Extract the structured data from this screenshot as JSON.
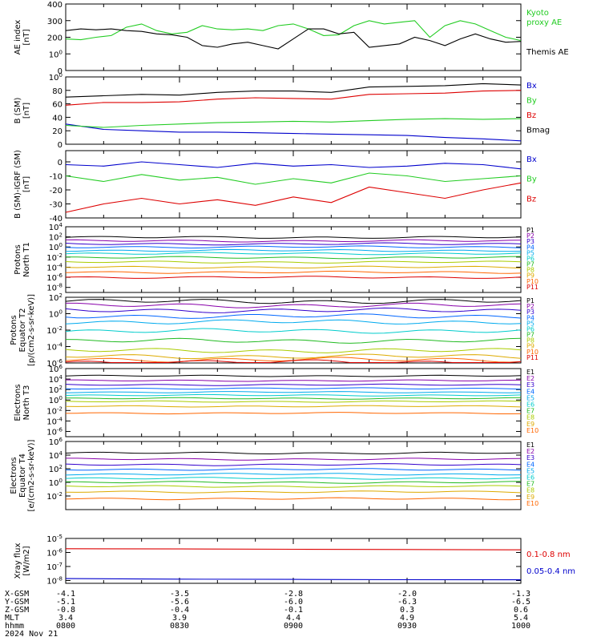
{
  "colors": {
    "black": "#000000",
    "red": "#dd0000",
    "green": "#22cc22",
    "blue": "#0000cc",
    "p1": "#000000",
    "p2": "#8800aa",
    "p3": "#3300cc",
    "p4": "#0066ff",
    "p5": "#00aaee",
    "p6": "#00cccc",
    "p7": "#22bb22",
    "p8": "#aacc00",
    "p9": "#ddaa00",
    "p10": "#ff6600",
    "p11": "#dd0000"
  },
  "footer": {
    "rows": [
      {
        "label": "X-GSM",
        "values": [
          "-4.1",
          "-3.5",
          "-2.8",
          "-2.0",
          "-1.3"
        ]
      },
      {
        "label": "Y-GSM",
        "values": [
          "-5.1",
          "-5.6",
          "-6.0",
          "-6.3",
          "-6.5"
        ]
      },
      {
        "label": "Z-GSM",
        "values": [
          "-0.8",
          "-0.4",
          "-0.1",
          "0.3",
          "0.6"
        ]
      },
      {
        "label": "MLT",
        "values": [
          "3.4",
          "3.9",
          "4.4",
          "4.9",
          "5.4"
        ]
      },
      {
        "label": "hhmm",
        "values": [
          "0800",
          "0830",
          "0900",
          "0930",
          "1000"
        ]
      }
    ],
    "date": "2024 Nov 21"
  },
  "chart_data": [
    {
      "type": "line",
      "ylabel": [
        "AE index",
        "[nT]"
      ],
      "ylim": [
        0,
        400
      ],
      "yticks": [
        0,
        100,
        200,
        300,
        400
      ],
      "yticklabels": [
        "0",
        "100",
        "200",
        "300",
        "400"
      ],
      "x_range": [
        "0800",
        "1000"
      ],
      "series": [
        {
          "name": "Kyoto proxy AE",
          "color": "#22cc22",
          "x": [
            0,
            4,
            8,
            12,
            16,
            20,
            24,
            28,
            32,
            36,
            40,
            44,
            48,
            52,
            56,
            60,
            64,
            68,
            72,
            76,
            80,
            84,
            88,
            92,
            96,
            100,
            104,
            108,
            112,
            116,
            120
          ],
          "y": [
            190,
            185,
            200,
            210,
            260,
            280,
            240,
            220,
            230,
            270,
            250,
            245,
            250,
            240,
            270,
            280,
            250,
            210,
            215,
            270,
            300,
            280,
            290,
            300,
            200,
            270,
            300,
            280,
            240,
            200,
            180
          ]
        },
        {
          "name": "Themis AE",
          "color": "#000000",
          "x": [
            0,
            4,
            8,
            12,
            16,
            20,
            24,
            28,
            32,
            36,
            40,
            44,
            48,
            52,
            56,
            60,
            64,
            68,
            72,
            76,
            80,
            84,
            88,
            92,
            96,
            100,
            104,
            108,
            112,
            116,
            120
          ],
          "y": [
            240,
            250,
            245,
            250,
            240,
            235,
            220,
            215,
            200,
            150,
            140,
            160,
            170,
            150,
            130,
            190,
            250,
            250,
            220,
            230,
            140,
            150,
            160,
            200,
            180,
            150,
            190,
            220,
            190,
            170,
            175
          ]
        }
      ]
    },
    {
      "type": "line",
      "ylabel": [
        "B (SM)",
        "[nT]"
      ],
      "ylim": [
        0,
        100
      ],
      "yticks": [
        0,
        20,
        40,
        60,
        80,
        100
      ],
      "yticklabels": [
        "0",
        "20",
        "40",
        "60",
        "80",
        "100"
      ],
      "series": [
        {
          "name": "Bx",
          "color": "#0000cc",
          "x": [
            0,
            10,
            20,
            30,
            40,
            50,
            60,
            70,
            80,
            90,
            100,
            110,
            120
          ],
          "y": [
            30,
            22,
            20,
            18,
            18,
            17,
            16,
            15,
            14,
            13,
            10,
            8,
            5
          ]
        },
        {
          "name": "By",
          "color": "#22cc22",
          "x": [
            0,
            10,
            20,
            30,
            40,
            50,
            60,
            70,
            80,
            90,
            100,
            110,
            120
          ],
          "y": [
            28,
            25,
            28,
            30,
            32,
            33,
            34,
            33,
            35,
            37,
            38,
            37,
            38
          ]
        },
        {
          "name": "Bz",
          "color": "#dd0000",
          "x": [
            0,
            10,
            20,
            30,
            40,
            50,
            60,
            70,
            80,
            90,
            100,
            110,
            120
          ],
          "y": [
            58,
            62,
            62,
            63,
            67,
            69,
            68,
            67,
            74,
            75,
            76,
            79,
            80
          ]
        },
        {
          "name": "Bmag",
          "color": "#000000",
          "x": [
            0,
            10,
            20,
            30,
            40,
            50,
            60,
            70,
            80,
            90,
            100,
            110,
            120
          ],
          "y": [
            70,
            72,
            74,
            73,
            77,
            79,
            79,
            77,
            85,
            86,
            87,
            90,
            88
          ]
        }
      ]
    },
    {
      "type": "line",
      "ylabel": [
        "B (SM)-IGRF (SM)",
        "[nT]"
      ],
      "ylim": [
        -40,
        8
      ],
      "yticks": [
        -40,
        -30,
        -20,
        -10,
        0
      ],
      "yticklabels": [
        "-40",
        "-30",
        "-20",
        "-10",
        "0"
      ],
      "series": [
        {
          "name": "Bx",
          "color": "#0000cc",
          "x": [
            0,
            10,
            20,
            30,
            40,
            50,
            60,
            70,
            80,
            90,
            100,
            110,
            120
          ],
          "y": [
            -2,
            -3,
            0,
            -2,
            -4,
            -1,
            -3,
            -2,
            -4,
            -3,
            -1,
            -2,
            -5
          ]
        },
        {
          "name": "By",
          "color": "#22cc22",
          "x": [
            0,
            10,
            20,
            30,
            40,
            50,
            60,
            70,
            80,
            90,
            100,
            110,
            120
          ],
          "y": [
            -10,
            -14,
            -9,
            -13,
            -11,
            -16,
            -12,
            -15,
            -8,
            -10,
            -14,
            -12,
            -10
          ]
        },
        {
          "name": "Bz",
          "color": "#dd0000",
          "x": [
            0,
            10,
            20,
            30,
            40,
            50,
            60,
            70,
            80,
            90,
            100,
            110,
            120
          ],
          "y": [
            -36,
            -30,
            -26,
            -30,
            -27,
            -31,
            -25,
            -29,
            -18,
            -22,
            -26,
            -20,
            -15
          ]
        }
      ]
    },
    {
      "type": "line",
      "log": true,
      "ylabel": [
        "Protons",
        "North T1"
      ],
      "ylim_exp": [
        -9,
        4
      ],
      "ytick_exps": [
        -8,
        -6,
        -4,
        -2,
        0,
        2,
        4
      ],
      "yticklabels": [
        "10-8",
        "10-6",
        "10-4",
        "10-2",
        "100",
        "102",
        "104"
      ],
      "legend": [
        "P1",
        "P2",
        "P3",
        "P4",
        "P5",
        "P6",
        "P7",
        "P8",
        "P9",
        "P10",
        "P11"
      ],
      "levels_exp": [
        1.9,
        1.2,
        0.6,
        0.0,
        -0.7,
        -1.3,
        -2.1,
        -3.0,
        -4.0,
        -5.0,
        -6.0
      ],
      "ripple": 0.15
    },
    {
      "type": "line",
      "log": true,
      "ylabel": [
        "Protons",
        "Equator T2",
        "[p/(cm2-s-sr-keV)]"
      ],
      "ylim_exp": [
        -6,
        2
      ],
      "ytick_exps": [
        -6,
        -4,
        -2,
        0,
        2
      ],
      "yticklabels": [
        "10-6",
        "10-4",
        "10-2",
        "100",
        "102"
      ],
      "legend": [
        "P1",
        "P2",
        "P3",
        "P4",
        "P5",
        "P6",
        "P7",
        "P8",
        "P9",
        "P10",
        "P11"
      ],
      "levels_exp": [
        1.5,
        1.0,
        0.4,
        -0.3,
        -1.0,
        -2.1,
        -3.3,
        -4.5,
        -5.2,
        -5.6,
        -5.9
      ],
      "ripple": 0.2
    },
    {
      "type": "line",
      "log": true,
      "ylabel": [
        "Electrons",
        "North T3"
      ],
      "ylim_exp": [
        -7,
        6
      ],
      "ytick_exps": [
        -6,
        -4,
        -2,
        0,
        2,
        4,
        6
      ],
      "yticklabels": [
        "10-6",
        "10-4",
        "10-2",
        "100",
        "102",
        "104",
        "106"
      ],
      "legend": [
        "E1",
        "E2",
        "E3",
        "E4",
        "E5",
        "E6",
        "E7",
        "E8",
        "E9",
        "E10"
      ],
      "levels_exp": [
        4.6,
        3.7,
        2.9,
        2.2,
        1.5,
        0.9,
        0.3,
        -0.3,
        -1.2,
        -2.5
      ],
      "ripple": 0.1
    },
    {
      "type": "line",
      "log": true,
      "ylabel": [
        "Electrons",
        "Equator T4",
        "[e/(cm2-s-sr-keV)]"
      ],
      "ylim_exp": [
        -4,
        6
      ],
      "ytick_exps": [
        -2,
        0,
        2,
        4,
        6
      ],
      "yticklabels": [
        "10-2",
        "100",
        "102",
        "104",
        "106"
      ],
      "legend": [
        "E1",
        "E2",
        "E3",
        "E4",
        "E5",
        "E6",
        "E7",
        "E8",
        "E9",
        "E10"
      ],
      "levels_exp": [
        4.3,
        3.4,
        2.6,
        1.9,
        1.2,
        0.6,
        0.0,
        -0.6,
        -1.4,
        -2.4
      ],
      "ripple": 0.1
    },
    {
      "type": "line",
      "log": true,
      "ylabel": [
        "Xray flux",
        "[W/m2]"
      ],
      "ylim_exp": [
        -8.2,
        -5
      ],
      "ytick_exps": [
        -8,
        -7,
        -6,
        -5
      ],
      "yticklabels": [
        "10-8",
        "10-7",
        "10-6",
        "10-5"
      ],
      "series": [
        {
          "name": "0.1-0.8 nm",
          "color": "#dd0000",
          "x": [
            0,
            30,
            60,
            90,
            120
          ],
          "y_exp": [
            -5.73,
            -5.75,
            -5.77,
            -5.79,
            -5.81
          ]
        },
        {
          "name": "0.05-0.4 nm",
          "color": "#0000cc",
          "x": [
            0,
            30,
            60,
            90,
            120
          ],
          "y_exp": [
            -7.86,
            -7.9,
            -7.92,
            -7.94,
            -7.95
          ]
        }
      ]
    }
  ]
}
